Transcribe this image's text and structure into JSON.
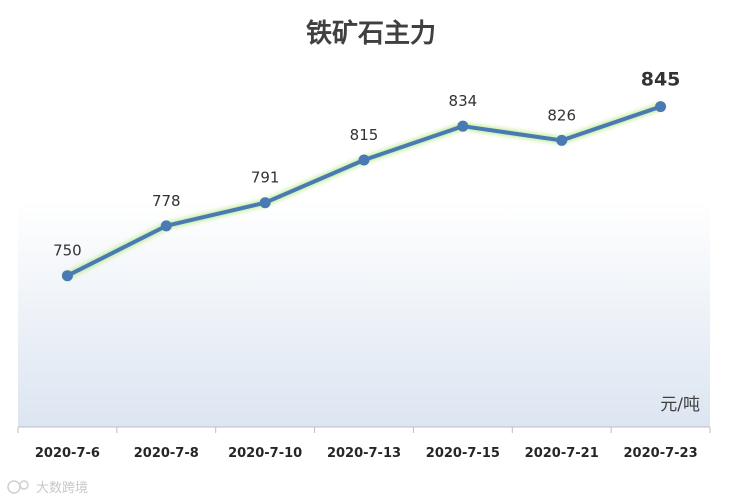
{
  "chart_data": {
    "type": "line",
    "title": "铁矿石主力",
    "unit": "元/吨",
    "categories": [
      "2020-7-6",
      "2020-7-8",
      "2020-7-10",
      "2020-7-13",
      "2020-7-15",
      "2020-7-21",
      "2020-7-23"
    ],
    "values": [
      750,
      778,
      791,
      815,
      834,
      826,
      845
    ],
    "value_labels": [
      "750",
      "778",
      "791",
      "815",
      "834",
      "826",
      "845"
    ],
    "ylim": [
      665,
      865
    ],
    "grid": false,
    "legend": "none",
    "line_color": "#4a7ab4",
    "glow_color": "#b8e986"
  },
  "watermark": "大数跨境"
}
